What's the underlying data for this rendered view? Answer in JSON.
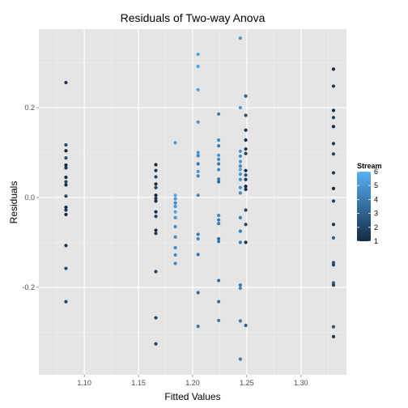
{
  "chart_data": {
    "type": "scatter",
    "title": "Residuals of Two-way Anova",
    "xlabel": "Fitted Values",
    "ylabel": "Residuals",
    "xlim": [
      1.058,
      1.342
    ],
    "ylim": [
      -0.395,
      0.375
    ],
    "x_ticks": [
      1.1,
      1.15,
      1.2,
      1.25,
      1.3
    ],
    "x_tick_labels": [
      "1.10",
      "1.15",
      "1.20",
      "1.25",
      "1.30"
    ],
    "y_ticks": [
      -0.2,
      0.0,
      0.2
    ],
    "y_tick_labels": [
      "-0.2",
      "0.0",
      "0.2"
    ],
    "grid": true,
    "legend": {
      "title": "Stream",
      "placement": "right",
      "type": "colorbar",
      "range": [
        1,
        6
      ],
      "labels": [
        "6",
        "5",
        "4",
        "3",
        "2",
        "1"
      ],
      "color_low": "#132B43",
      "color_high": "#56B1F7"
    },
    "points": [
      {
        "x": 1.083,
        "y": 0.256,
        "s": 1.5
      },
      {
        "x": 1.083,
        "y": 0.117,
        "s": 2
      },
      {
        "x": 1.083,
        "y": 0.104,
        "s": 1
      },
      {
        "x": 1.083,
        "y": 0.088,
        "s": 2.5
      },
      {
        "x": 1.083,
        "y": 0.072,
        "s": 1
      },
      {
        "x": 1.083,
        "y": 0.066,
        "s": 1.5
      },
      {
        "x": 1.083,
        "y": 0.045,
        "s": 1
      },
      {
        "x": 1.083,
        "y": 0.035,
        "s": 2
      },
      {
        "x": 1.083,
        "y": 0.028,
        "s": 1
      },
      {
        "x": 1.083,
        "y": 0.003,
        "s": 2
      },
      {
        "x": 1.083,
        "y": -0.022,
        "s": 1
      },
      {
        "x": 1.083,
        "y": -0.028,
        "s": 1.5
      },
      {
        "x": 1.083,
        "y": -0.038,
        "s": 1
      },
      {
        "x": 1.083,
        "y": -0.107,
        "s": 1.5
      },
      {
        "x": 1.083,
        "y": -0.158,
        "s": 2
      },
      {
        "x": 1.083,
        "y": -0.232,
        "s": 2
      },
      {
        "x": 1.166,
        "y": 0.073,
        "s": 1
      },
      {
        "x": 1.166,
        "y": 0.06,
        "s": 1.5
      },
      {
        "x": 1.166,
        "y": 0.046,
        "s": 2
      },
      {
        "x": 1.166,
        "y": 0.03,
        "s": 1
      },
      {
        "x": 1.166,
        "y": 0.022,
        "s": 2
      },
      {
        "x": 1.166,
        "y": 0.005,
        "s": 1
      },
      {
        "x": 1.166,
        "y": -0.002,
        "s": 1.5
      },
      {
        "x": 1.166,
        "y": -0.008,
        "s": 1
      },
      {
        "x": 1.166,
        "y": -0.032,
        "s": 1
      },
      {
        "x": 1.166,
        "y": -0.042,
        "s": 2
      },
      {
        "x": 1.166,
        "y": -0.073,
        "s": 1
      },
      {
        "x": 1.166,
        "y": -0.08,
        "s": 1.5
      },
      {
        "x": 1.166,
        "y": -0.165,
        "s": 2
      },
      {
        "x": 1.166,
        "y": -0.268,
        "s": 2
      },
      {
        "x": 1.166,
        "y": -0.326,
        "s": 2
      },
      {
        "x": 1.184,
        "y": 0.122,
        "s": 5
      },
      {
        "x": 1.184,
        "y": 0.005,
        "s": 5.5
      },
      {
        "x": 1.184,
        "y": -0.003,
        "s": 5
      },
      {
        "x": 1.184,
        "y": -0.012,
        "s": 4.5
      },
      {
        "x": 1.184,
        "y": -0.02,
        "s": 5
      },
      {
        "x": 1.184,
        "y": -0.032,
        "s": 5.5
      },
      {
        "x": 1.184,
        "y": -0.045,
        "s": 5
      },
      {
        "x": 1.184,
        "y": -0.065,
        "s": 4.5
      },
      {
        "x": 1.184,
        "y": -0.088,
        "s": 4.5
      },
      {
        "x": 1.184,
        "y": -0.112,
        "s": 4.5
      },
      {
        "x": 1.184,
        "y": -0.128,
        "s": 4.5
      },
      {
        "x": 1.184,
        "y": -0.147,
        "s": 4.5
      },
      {
        "x": 1.205,
        "y": 0.319,
        "s": 5.5
      },
      {
        "x": 1.205,
        "y": 0.292,
        "s": 5.5
      },
      {
        "x": 1.205,
        "y": 0.24,
        "s": 5.5
      },
      {
        "x": 1.205,
        "y": 0.168,
        "s": 5
      },
      {
        "x": 1.205,
        "y": 0.1,
        "s": 5
      },
      {
        "x": 1.205,
        "y": 0.093,
        "s": 4.5
      },
      {
        "x": 1.205,
        "y": 0.075,
        "s": 4
      },
      {
        "x": 1.205,
        "y": 0.058,
        "s": 5
      },
      {
        "x": 1.205,
        "y": 0.048,
        "s": 4.5
      },
      {
        "x": 1.205,
        "y": 0.005,
        "s": 4.5
      },
      {
        "x": 1.205,
        "y": -0.082,
        "s": 4
      },
      {
        "x": 1.205,
        "y": -0.092,
        "s": 4.5
      },
      {
        "x": 1.205,
        "y": -0.127,
        "s": 4
      },
      {
        "x": 1.205,
        "y": -0.212,
        "s": 3.5
      },
      {
        "x": 1.205,
        "y": -0.287,
        "s": 4
      },
      {
        "x": 1.224,
        "y": 0.186,
        "s": 4
      },
      {
        "x": 1.224,
        "y": 0.128,
        "s": 4.5
      },
      {
        "x": 1.224,
        "y": 0.115,
        "s": 4
      },
      {
        "x": 1.224,
        "y": 0.094,
        "s": 5
      },
      {
        "x": 1.224,
        "y": 0.085,
        "s": 4.5
      },
      {
        "x": 1.224,
        "y": 0.075,
        "s": 4
      },
      {
        "x": 1.224,
        "y": 0.062,
        "s": 4.5
      },
      {
        "x": 1.224,
        "y": 0.041,
        "s": 4
      },
      {
        "x": 1.224,
        "y": 0.035,
        "s": 3.5
      },
      {
        "x": 1.224,
        "y": -0.04,
        "s": 4.5
      },
      {
        "x": 1.224,
        "y": -0.05,
        "s": 4
      },
      {
        "x": 1.224,
        "y": -0.058,
        "s": 4
      },
      {
        "x": 1.224,
        "y": -0.092,
        "s": 3.5
      },
      {
        "x": 1.224,
        "y": -0.098,
        "s": 4
      },
      {
        "x": 1.224,
        "y": -0.185,
        "s": 3.5
      },
      {
        "x": 1.224,
        "y": -0.232,
        "s": 3.5
      },
      {
        "x": 1.224,
        "y": -0.274,
        "s": 4
      },
      {
        "x": 1.244,
        "y": 0.355,
        "s": 5
      },
      {
        "x": 1.244,
        "y": 0.2,
        "s": 5
      },
      {
        "x": 1.244,
        "y": 0.103,
        "s": 5
      },
      {
        "x": 1.244,
        "y": 0.092,
        "s": 4.5
      },
      {
        "x": 1.244,
        "y": 0.08,
        "s": 5
      },
      {
        "x": 1.244,
        "y": 0.07,
        "s": 4.5
      },
      {
        "x": 1.244,
        "y": 0.062,
        "s": 5.5
      },
      {
        "x": 1.244,
        "y": 0.052,
        "s": 5
      },
      {
        "x": 1.244,
        "y": 0.04,
        "s": 4.5
      },
      {
        "x": 1.244,
        "y": 0.022,
        "s": 5
      },
      {
        "x": 1.244,
        "y": 0.01,
        "s": 4.5
      },
      {
        "x": 1.244,
        "y": -0.045,
        "s": 4
      },
      {
        "x": 1.244,
        "y": -0.075,
        "s": 4
      },
      {
        "x": 1.244,
        "y": -0.1,
        "s": 4
      },
      {
        "x": 1.244,
        "y": -0.195,
        "s": 4
      },
      {
        "x": 1.244,
        "y": -0.202,
        "s": 4.5
      },
      {
        "x": 1.244,
        "y": -0.275,
        "s": 4
      },
      {
        "x": 1.244,
        "y": -0.36,
        "s": 4
      },
      {
        "x": 1.249,
        "y": 0.226,
        "s": 3
      },
      {
        "x": 1.249,
        "y": 0.183,
        "s": 2.5
      },
      {
        "x": 1.249,
        "y": 0.15,
        "s": 1.5
      },
      {
        "x": 1.249,
        "y": 0.128,
        "s": 1
      },
      {
        "x": 1.249,
        "y": 0.108,
        "s": 1.5
      },
      {
        "x": 1.249,
        "y": 0.098,
        "s": 2
      },
      {
        "x": 1.249,
        "y": 0.06,
        "s": 1
      },
      {
        "x": 1.249,
        "y": 0.05,
        "s": 2.5
      },
      {
        "x": 1.249,
        "y": 0.04,
        "s": 1.5
      },
      {
        "x": 1.249,
        "y": 0.025,
        "s": 1
      },
      {
        "x": 1.249,
        "y": 0.018,
        "s": 1
      },
      {
        "x": 1.249,
        "y": -0.028,
        "s": 2
      },
      {
        "x": 1.249,
        "y": -0.06,
        "s": 2
      },
      {
        "x": 1.249,
        "y": -0.1,
        "s": 1.5
      },
      {
        "x": 1.249,
        "y": -0.285,
        "s": 3
      },
      {
        "x": 1.33,
        "y": 0.286,
        "s": 1
      },
      {
        "x": 1.33,
        "y": 0.248,
        "s": 1.5
      },
      {
        "x": 1.33,
        "y": 0.194,
        "s": 1
      },
      {
        "x": 1.33,
        "y": 0.178,
        "s": 2
      },
      {
        "x": 1.33,
        "y": 0.158,
        "s": 1
      },
      {
        "x": 1.33,
        "y": 0.12,
        "s": 1.5
      },
      {
        "x": 1.33,
        "y": 0.097,
        "s": 2
      },
      {
        "x": 1.33,
        "y": 0.055,
        "s": 1.5
      },
      {
        "x": 1.33,
        "y": 0.02,
        "s": 1
      },
      {
        "x": 1.33,
        "y": -0.008,
        "s": 2
      },
      {
        "x": 1.33,
        "y": -0.06,
        "s": 1.5
      },
      {
        "x": 1.33,
        "y": -0.09,
        "s": 3
      },
      {
        "x": 1.33,
        "y": -0.145,
        "s": 2.5
      },
      {
        "x": 1.33,
        "y": -0.15,
        "s": 2
      },
      {
        "x": 1.33,
        "y": -0.19,
        "s": 3
      },
      {
        "x": 1.33,
        "y": -0.195,
        "s": 2
      },
      {
        "x": 1.33,
        "y": -0.288,
        "s": 2.5
      },
      {
        "x": 1.33,
        "y": -0.31,
        "s": 1.5
      }
    ]
  }
}
